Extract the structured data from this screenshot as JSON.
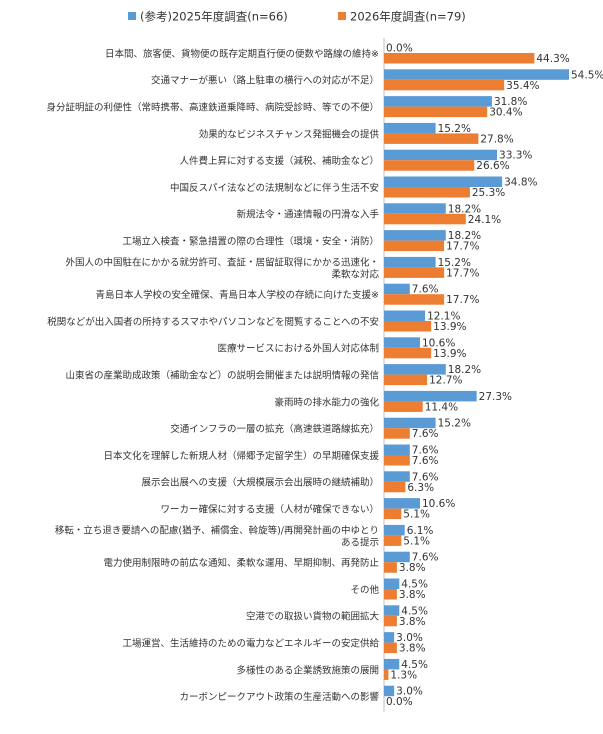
{
  "chart_data": {
    "type": "bar",
    "orientation": "horizontal",
    "series": [
      {
        "name": "(参考)2025年度調査(n=66)",
        "color": "#5b9bd5",
        "values": [
          0.0,
          54.5,
          31.8,
          15.2,
          33.3,
          34.8,
          18.2,
          18.2,
          15.2,
          7.6,
          12.1,
          10.6,
          18.2,
          27.3,
          15.2,
          7.6,
          7.6,
          10.6,
          6.1,
          7.6,
          4.5,
          4.5,
          3.0,
          4.5,
          3.0
        ]
      },
      {
        "name": "2026年度調査(n=79)",
        "color": "#ed7d31",
        "values": [
          44.3,
          35.4,
          30.4,
          27.8,
          26.6,
          25.3,
          24.1,
          17.7,
          17.7,
          17.7,
          13.9,
          13.9,
          12.7,
          11.4,
          7.6,
          7.6,
          6.3,
          5.1,
          5.1,
          3.8,
          3.8,
          3.8,
          3.8,
          1.3,
          0.0
        ]
      }
    ],
    "value_labels": [
      [
        "0.0%",
        "54.5%",
        "31.8%",
        "15.2%",
        "33.3%",
        "34.8%",
        "18.2%",
        "18.2%",
        "15.2%",
        "7.6%",
        "12.1%",
        "10.6%",
        "18.2%",
        "27.3%",
        "15.2%",
        "7.6%",
        "7.6%",
        "10.6%",
        "6.1%",
        "7.6%",
        "4.5%",
        "4.5%",
        "3.0%",
        "4.5%",
        "3.0%"
      ],
      [
        "44.3%",
        "35.4%",
        "30.4%",
        "27.8%",
        "26.6%",
        "25.3%",
        "24.1%",
        "17.7%",
        "17.7%",
        "17.7%",
        "13.9%",
        "13.9%",
        "12.7%",
        "11.4%",
        "7.6%",
        "7.6%",
        "6.3%",
        "5.1%",
        "5.1%",
        "3.8%",
        "3.8%",
        "3.8%",
        "3.8%",
        "1.3%",
        "0.0%"
      ]
    ],
    "categories": [
      [
        "日本間、旅客便、貨物便の既存定期直行便の便数や路線の維持※"
      ],
      [
        "交通マナーが悪い（路上駐車の横行への対応が不足）"
      ],
      [
        "身分証明証の利便性（常時携帯、高速鉄道乗降時、病院受診時、等での不便）"
      ],
      [
        "効果的なビジネスチャンス発掘機会の提供"
      ],
      [
        "人件費上昇に対する支援（減税、補助金など）"
      ],
      [
        "中国反スパイ法などの法規制などに伴う生活不安"
      ],
      [
        "新規法令・通達情報の円滑な入手"
      ],
      [
        "工場立入検査・緊急措置の際の合理性（環境・安全・消防）"
      ],
      [
        "外国人の中国駐在にかかる就労許可、査証・居留証取得にかかる迅速化・",
        "柔軟な対応"
      ],
      [
        "青島日本人学校の安全確保、青島日本人学校の存続に向けた支援※"
      ],
      [
        "税関などが出入国者の所持するスマホやパソコンなどを閲覧することへの不安"
      ],
      [
        "医療サービスにおける外国人対応体制"
      ],
      [
        "山東省の産業助成政策（補助金など）の説明会開催または説明情報の発信"
      ],
      [
        "豪雨時の排水能力の強化"
      ],
      [
        "交通インフラの一層の拡充（高速鉄道路線拡充）"
      ],
      [
        "日本文化を理解した新規人材（帰郷予定留学生）の早期確保支援"
      ],
      [
        "展示会出展への支援（大規模展示会出展時の継続補助）"
      ],
      [
        "ワーカー確保に対する支援（人材が確保できない）"
      ],
      [
        "移転・立ち退き要請への配慮(猶予、補償金、斡旋等)/再開発計画の中ゆとり",
        "ある提示"
      ],
      [
        "電力使用制限時の前広な通知、柔軟な運用、早期抑制、再発防止"
      ],
      [
        "その他"
      ],
      [
        "空港での取扱い貨物の範囲拡大"
      ],
      [
        "工場運営、生活維持のための電力などエネルギーの安定供給"
      ],
      [
        "多様性のある企業誘致施策の展開"
      ],
      [
        "カーボンピークアウト政策の生産活動への影響"
      ]
    ],
    "legend_position": "top",
    "grid": false,
    "xlim": [
      0,
      54.5
    ]
  }
}
